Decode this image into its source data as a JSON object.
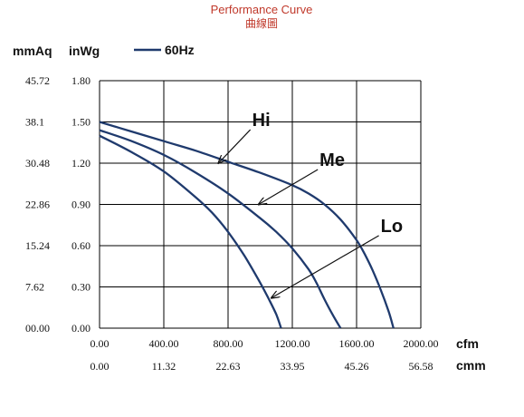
{
  "chart_data": {
    "type": "line",
    "title": "Performance Curve",
    "subtitle": "曲線圖",
    "y_units": [
      "mmAq",
      "inWg"
    ],
    "x_units": [
      "cfm",
      "cmm"
    ],
    "legend": "60Hz",
    "xlim": [
      0,
      2000
    ],
    "ylim": [
      0,
      1.8
    ],
    "x_ticks_cfm": [
      "0.00",
      "400.00",
      "800.00",
      "1200.00",
      "1600.00",
      "2000.00"
    ],
    "x_ticks_cmm": [
      "0.00",
      "11.32",
      "22.63",
      "33.95",
      "45.26",
      "56.58"
    ],
    "y_ticks_inwg": [
      "1.80",
      "1.50",
      "1.20",
      "0.90",
      "0.60",
      "0.30",
      "0.00"
    ],
    "y_ticks_mmaq": [
      "45.72",
      "38.1",
      "30.48",
      "22.86",
      "15.24",
      "7.62",
      "00.00"
    ],
    "grid": true,
    "line_color": "#1f3a6d",
    "series": [
      {
        "name": "Hi",
        "x": [
          0,
          200,
          400,
          600,
          800,
          1000,
          1200,
          1300,
          1400,
          1500,
          1600,
          1650,
          1700,
          1750,
          1800,
          1830
        ],
        "y": [
          1.5,
          1.43,
          1.36,
          1.29,
          1.21,
          1.13,
          1.04,
          0.98,
          0.9,
          0.79,
          0.64,
          0.54,
          0.42,
          0.28,
          0.12,
          0.0
        ]
      },
      {
        "name": "Me",
        "x": [
          0,
          200,
          400,
          600,
          800,
          1000,
          1100,
          1200,
          1300,
          1350,
          1400,
          1450,
          1500
        ],
        "y": [
          1.44,
          1.36,
          1.26,
          1.13,
          0.98,
          0.8,
          0.7,
          0.58,
          0.43,
          0.33,
          0.21,
          0.1,
          0.0
        ]
      },
      {
        "name": "Lo",
        "x": [
          0,
          200,
          400,
          600,
          700,
          800,
          900,
          1000,
          1050,
          1100,
          1130
        ],
        "y": [
          1.4,
          1.28,
          1.14,
          0.95,
          0.84,
          0.7,
          0.53,
          0.33,
          0.22,
          0.1,
          0.0
        ]
      }
    ],
    "annotations": [
      {
        "label": "Hi",
        "text_x": 950,
        "text_y": 1.47,
        "arrow_to_x": 740,
        "arrow_to_y": 1.2
      },
      {
        "label": "Me",
        "text_x": 1370,
        "text_y": 1.18,
        "arrow_to_x": 990,
        "arrow_to_y": 0.9
      },
      {
        "label": "Lo",
        "text_x": 1750,
        "text_y": 0.7,
        "arrow_to_x": 1070,
        "arrow_to_y": 0.22
      }
    ]
  }
}
